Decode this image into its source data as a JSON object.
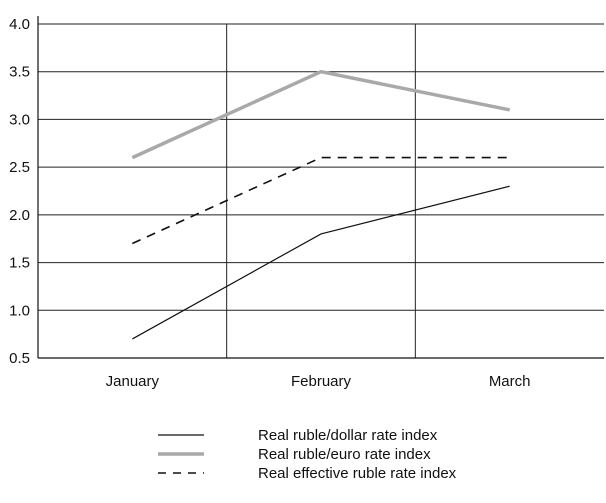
{
  "chart_data": {
    "type": "line",
    "categories": [
      "January",
      "February",
      "March"
    ],
    "series": [
      {
        "name": "Real ruble/dollar rate index",
        "values": [
          0.7,
          1.8,
          2.3
        ],
        "color": "#111111",
        "style": "solid-thin"
      },
      {
        "name": "Real ruble/euro rate index",
        "values": [
          2.6,
          3.5,
          3.1
        ],
        "color": "#a9a9a9",
        "style": "solid-thick"
      },
      {
        "name": "Real effective ruble rate index",
        "values": [
          1.7,
          2.6,
          2.6
        ],
        "color": "#111111",
        "style": "dashed"
      }
    ],
    "yticks": [
      "4.0",
      "3.5",
      "3.0",
      "2.5",
      "2.0",
      "1.5",
      "1.0",
      "0.5"
    ],
    "ylim": [
      0.5,
      4.0
    ],
    "grid": "horizontal and vertical",
    "legend_position": "bottom"
  }
}
